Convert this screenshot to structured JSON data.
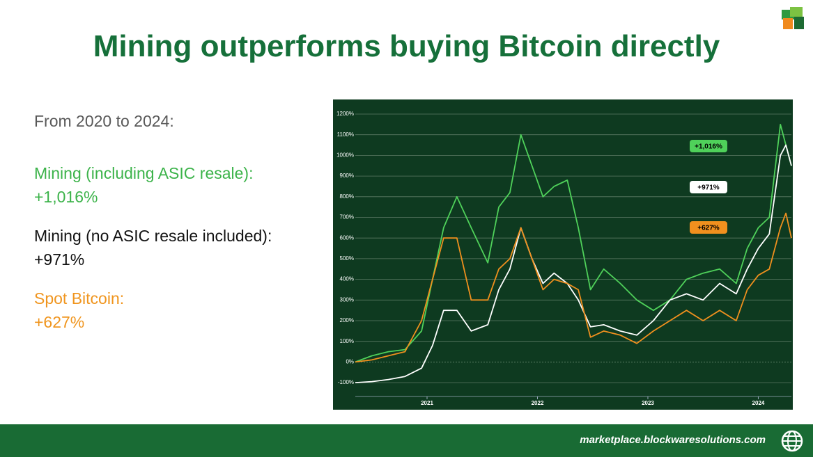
{
  "title": "Mining outperforms buying Bitcoin directly",
  "left_text": {
    "intro": "From 2020 to 2024:",
    "items": [
      {
        "label": "Mining (including ASIC resale):",
        "value": "+1,016%",
        "color": "#3cb34a"
      },
      {
        "label": "Mining (no ASIC resale included):",
        "value": "+971%",
        "color": "#111111"
      },
      {
        "label": "Spot Bitcoin:",
        "value": "+627%",
        "color": "#f0951e"
      }
    ]
  },
  "footer": {
    "url": "marketplace.blockwaresolutions.com"
  },
  "chart_data": {
    "type": "line",
    "x": [
      2020.35,
      2020.5,
      2020.65,
      2020.8,
      2020.95,
      2021.05,
      2021.15,
      2021.27,
      2021.4,
      2021.55,
      2021.65,
      2021.75,
      2021.85,
      2021.95,
      2022.05,
      2022.15,
      2022.27,
      2022.37,
      2022.48,
      2022.6,
      2022.75,
      2022.9,
      2023.05,
      2023.2,
      2023.35,
      2023.5,
      2023.65,
      2023.8,
      2023.9,
      2024.0,
      2024.1,
      2024.2,
      2024.25,
      2024.3
    ],
    "series": [
      {
        "name": "Mining (including ASIC resale)",
        "color": "#4fd15a",
        "values": [
          0,
          30,
          50,
          60,
          150,
          400,
          650,
          800,
          650,
          480,
          750,
          820,
          1100,
          950,
          800,
          850,
          880,
          650,
          350,
          450,
          380,
          300,
          250,
          300,
          400,
          430,
          450,
          380,
          550,
          650,
          700,
          1150,
          1050,
          950
        ]
      },
      {
        "name": "Mining (no ASIC resale included)",
        "color": "#ffffff",
        "values": [
          -100,
          -95,
          -85,
          -70,
          -30,
          80,
          250,
          250,
          150,
          180,
          350,
          450,
          650,
          500,
          380,
          430,
          380,
          300,
          170,
          180,
          150,
          130,
          200,
          300,
          330,
          300,
          380,
          330,
          450,
          550,
          620,
          1000,
          1050,
          950
        ]
      },
      {
        "name": "Spot Bitcoin",
        "color": "#f0901e",
        "values": [
          0,
          10,
          30,
          50,
          200,
          400,
          600,
          600,
          300,
          300,
          450,
          500,
          650,
          500,
          350,
          400,
          380,
          350,
          120,
          150,
          130,
          90,
          150,
          200,
          250,
          200,
          250,
          200,
          350,
          420,
          450,
          650,
          720,
          600
        ]
      }
    ],
    "annotations": [
      {
        "text": "+1,016%",
        "color": "#4fd15a"
      },
      {
        "text": "+971%",
        "color": "#ffffff"
      },
      {
        "text": "+627%",
        "color": "#f0901e"
      }
    ],
    "xlim": [
      2020.35,
      2024.3
    ],
    "xticks": [
      2021,
      2022,
      2023,
      2024
    ],
    "ylim": [
      -167,
      1264
    ],
    "yticks": [
      {
        "value": -100,
        "label": "-100%"
      },
      {
        "value": 0,
        "label": "0%"
      },
      {
        "value": 100,
        "label": "100%"
      },
      {
        "value": 200,
        "label": "200%"
      },
      {
        "value": 300,
        "label": "300%"
      },
      {
        "value": 400,
        "label": "400%"
      },
      {
        "value": 500,
        "label": "500%"
      },
      {
        "value": 600,
        "label": "600%"
      },
      {
        "value": 700,
        "label": "700%"
      },
      {
        "value": 800,
        "label": "800%"
      },
      {
        "value": 900,
        "label": "900%"
      },
      {
        "value": 1000,
        "label": "1000%"
      },
      {
        "value": 1100,
        "label": "1100%"
      },
      {
        "value": 1200,
        "label": "1200%"
      }
    ],
    "grid": true,
    "background": "#0e3a20"
  }
}
